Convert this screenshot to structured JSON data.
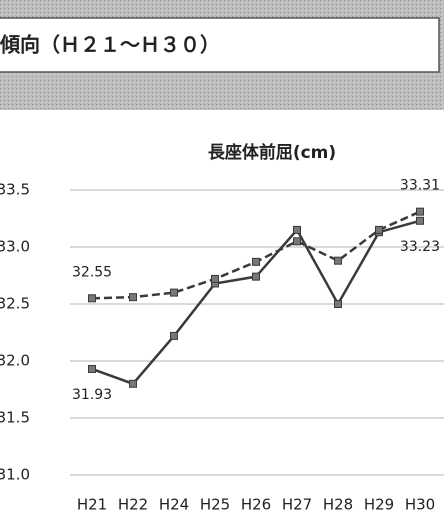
{
  "header": {
    "title": "傾向（Ｈ２１～Ｈ３０）"
  },
  "chart_data": {
    "type": "line",
    "title": "長座体前屈(cm)",
    "categories": [
      "H21",
      "H22",
      "H24",
      "H25",
      "H26",
      "H27",
      "H28",
      "H29",
      "H30"
    ],
    "series": [
      {
        "color": "#3a3a3a",
        "dashed": false,
        "values": [
          31.93,
          31.8,
          32.22,
          32.68,
          32.74,
          33.15,
          32.5,
          33.13,
          33.23
        ]
      },
      {
        "color": "#3a3a3a",
        "dashed": true,
        "values": [
          32.55,
          32.56,
          32.6,
          32.72,
          32.87,
          33.05,
          32.88,
          33.15,
          33.31
        ]
      }
    ],
    "ylim": [
      31.0,
      33.5
    ],
    "yticks": [
      {
        "value": 31.0,
        "label": "31.0"
      },
      31.5,
      {
        "value": 32.0,
        "label": "32.0"
      },
      32.5,
      {
        "value": 33.0,
        "label": "33.0"
      },
      33.5
    ],
    "grid": true
  }
}
